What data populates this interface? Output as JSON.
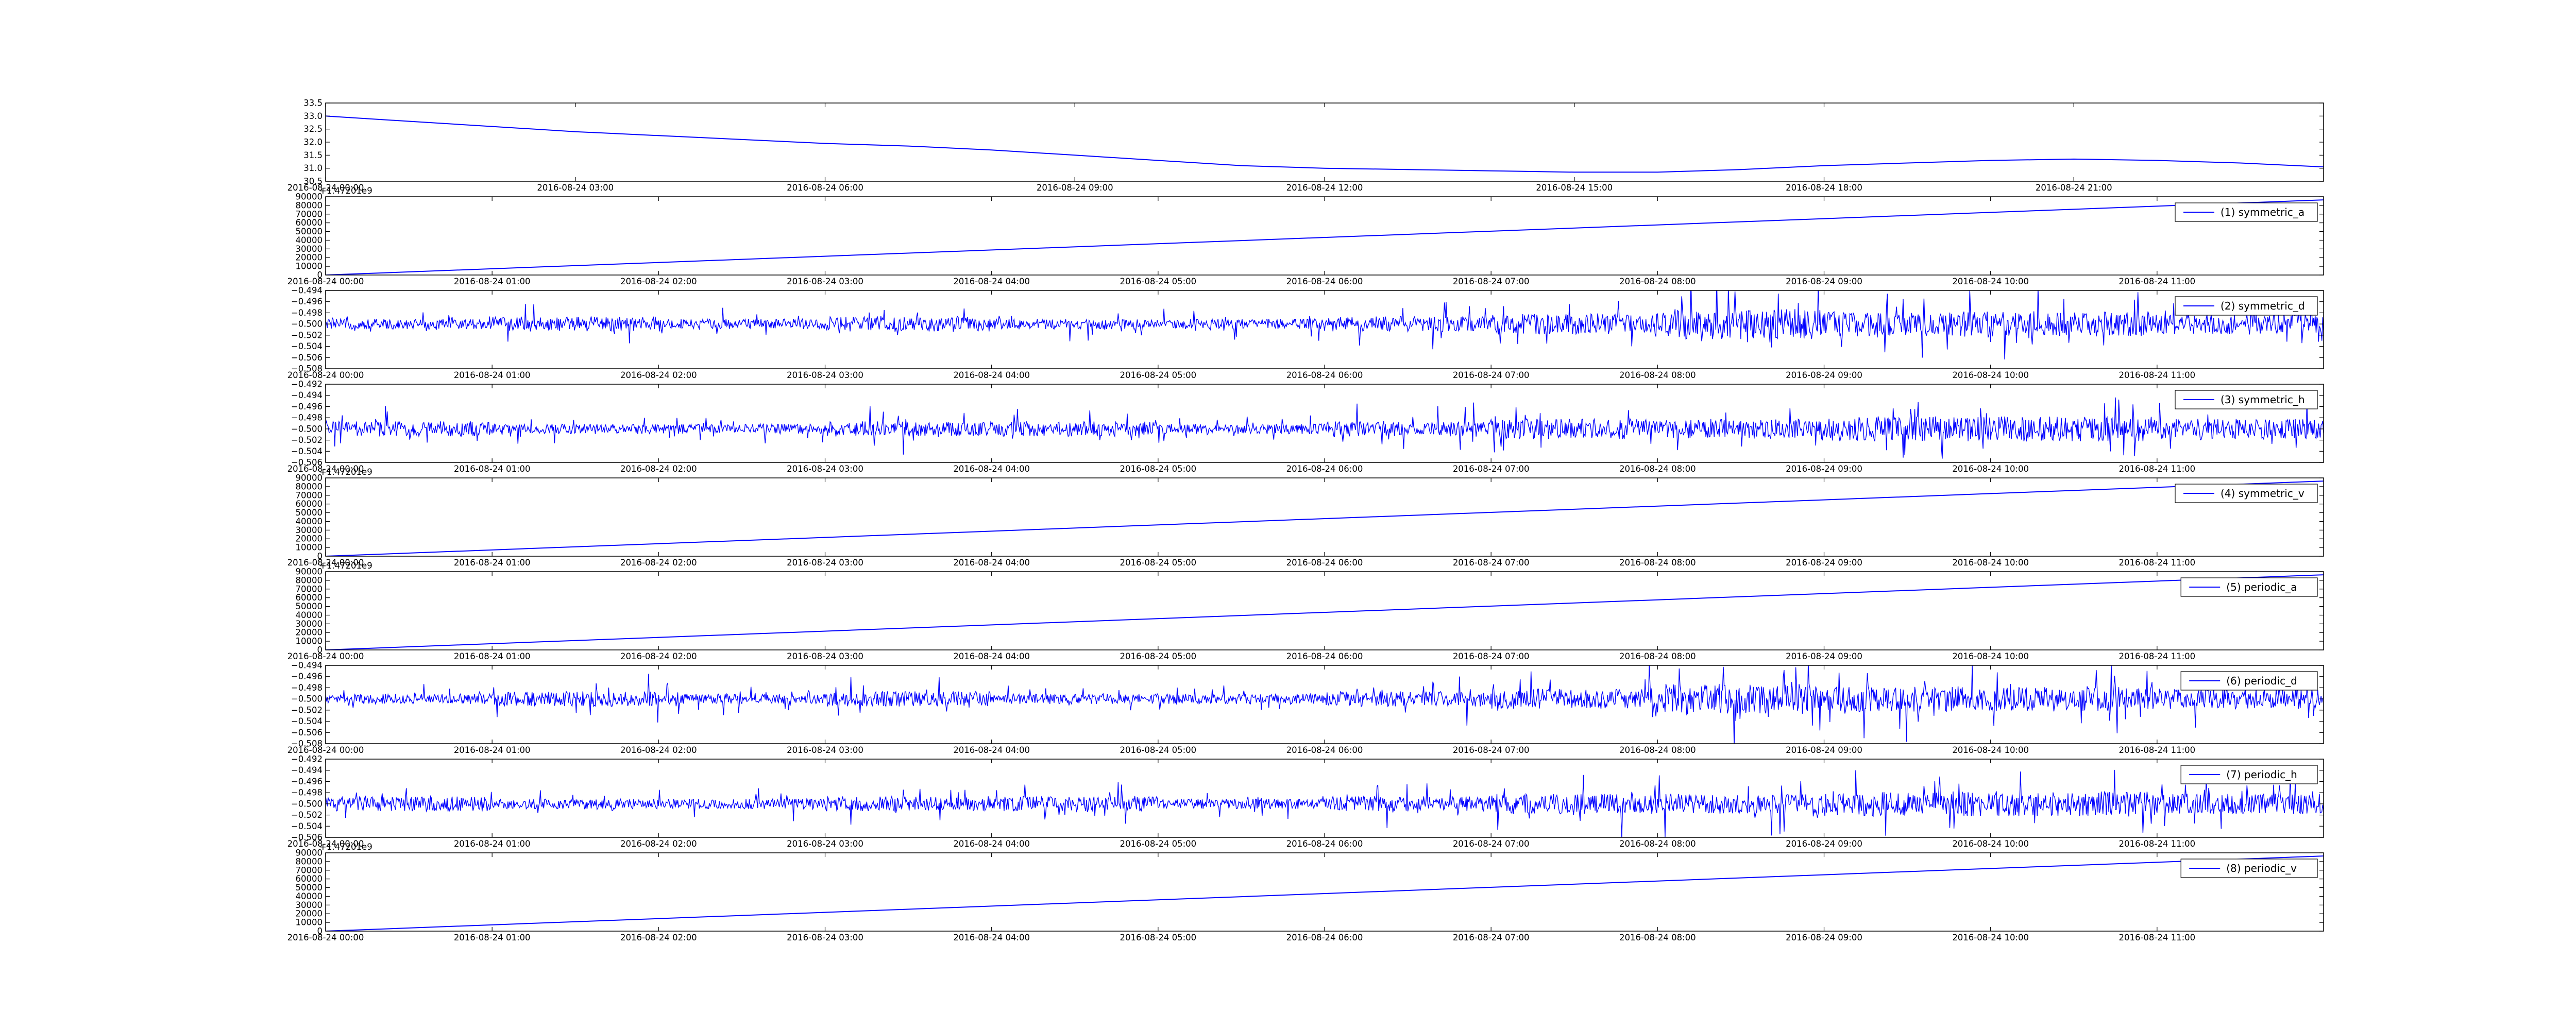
{
  "chart_data": [
    {
      "type": "line",
      "offset_label": "",
      "series": [
        {
          "points": [
            [
              "2016-08-24 00:00",
              33.0
            ],
            [
              "2016-08-24 01:00",
              32.8
            ],
            [
              "2016-08-24 02:00",
              32.6
            ],
            [
              "2016-08-24 03:00",
              32.4
            ],
            [
              "2016-08-24 04:00",
              32.25
            ],
            [
              "2016-08-24 05:00",
              32.1
            ],
            [
              "2016-08-24 06:00",
              31.95
            ],
            [
              "2016-08-24 07:00",
              31.85
            ],
            [
              "2016-08-24 08:00",
              31.7
            ],
            [
              "2016-08-24 09:00",
              31.5
            ],
            [
              "2016-08-24 10:00",
              31.3
            ],
            [
              "2016-08-24 11:00",
              31.1
            ],
            [
              "2016-08-24 12:00",
              31.0
            ],
            [
              "2016-08-24 13:00",
              30.95
            ],
            [
              "2016-08-24 14:00",
              30.9
            ],
            [
              "2016-08-24 15:00",
              30.85
            ],
            [
              "2016-08-24 16:00",
              30.85
            ],
            [
              "2016-08-24 17:00",
              30.95
            ],
            [
              "2016-08-24 18:00",
              31.1
            ],
            [
              "2016-08-24 19:00",
              31.2
            ],
            [
              "2016-08-24 20:00",
              31.3
            ],
            [
              "2016-08-24 21:00",
              31.35
            ],
            [
              "2016-08-24 22:00",
              31.3
            ],
            [
              "2016-08-24 23:00",
              31.2
            ],
            [
              "2016-08-25 00:00",
              31.05
            ]
          ]
        }
      ],
      "x_ticks": [
        "2016-08-24 00:00",
        "2016-08-24 03:00",
        "2016-08-24 06:00",
        "2016-08-24 09:00",
        "2016-08-24 12:00",
        "2016-08-24 15:00",
        "2016-08-24 18:00",
        "2016-08-24 21:00"
      ],
      "xlim": [
        "2016-08-24 00:00",
        "2016-08-25 00:00"
      ],
      "ylim": [
        30.5,
        33.5
      ],
      "y_ticks": [
        "30.5",
        "31.0",
        "31.5",
        "32.0",
        "32.5",
        "33.0",
        "33.5"
      ],
      "grid": false
    },
    {
      "type": "line",
      "offset_label": "+1.47201e9",
      "legend": "(1) symmetric_a",
      "legend_position": "right",
      "pattern": "ramp",
      "series": [
        {
          "name": "(1) symmetric_a",
          "x": [
            "2016-08-24 00:00",
            "2016-08-24 12:00"
          ],
          "y": [
            0,
            86400
          ]
        }
      ],
      "x_ticks": [
        "2016-08-24 00:00",
        "2016-08-24 01:00",
        "2016-08-24 02:00",
        "2016-08-24 03:00",
        "2016-08-24 04:00",
        "2016-08-24 05:00",
        "2016-08-24 06:00",
        "2016-08-24 07:00",
        "2016-08-24 08:00",
        "2016-08-24 09:00",
        "2016-08-24 10:00",
        "2016-08-24 11:00"
      ],
      "xlim": [
        "2016-08-24 00:00",
        "2016-08-24 12:00"
      ],
      "ylim": [
        0,
        90000
      ],
      "y_ticks": [
        "0",
        "10000",
        "20000",
        "30000",
        "40000",
        "50000",
        "60000",
        "70000",
        "80000",
        "90000"
      ],
      "grid": false
    },
    {
      "type": "line",
      "offset_label": "",
      "legend": "(2) symmetric_d",
      "legend_position": "right",
      "pattern": "noise",
      "series": [
        {
          "name": "(2) symmetric_d",
          "baseline": -0.5,
          "amplitude_profile": [
            0.002,
            0.003,
            0.002,
            0.003,
            0.002,
            0.002,
            0.003,
            0.004,
            0.006,
            0.005,
            0.005,
            0.004
          ]
        }
      ],
      "x_ticks": [
        "2016-08-24 00:00",
        "2016-08-24 01:00",
        "2016-08-24 02:00",
        "2016-08-24 03:00",
        "2016-08-24 04:00",
        "2016-08-24 05:00",
        "2016-08-24 06:00",
        "2016-08-24 07:00",
        "2016-08-24 08:00",
        "2016-08-24 09:00",
        "2016-08-24 10:00",
        "2016-08-24 11:00"
      ],
      "xlim": [
        "2016-08-24 00:00",
        "2016-08-24 12:00"
      ],
      "ylim": [
        -0.508,
        -0.494
      ],
      "y_ticks": [
        "−0.508",
        "−0.506",
        "−0.504",
        "−0.502",
        "−0.500",
        "−0.498",
        "−0.496",
        "−0.494"
      ],
      "grid": false
    },
    {
      "type": "line",
      "offset_label": "",
      "legend": "(3) symmetric_h",
      "legend_position": "right",
      "pattern": "noise",
      "series": [
        {
          "name": "(3) symmetric_h",
          "baseline": -0.5,
          "amplitude_profile": [
            0.003,
            0.002,
            0.002,
            0.003,
            0.003,
            0.002,
            0.003,
            0.004,
            0.004,
            0.005,
            0.005,
            0.004
          ]
        }
      ],
      "x_ticks": [
        "2016-08-24 00:00",
        "2016-08-24 01:00",
        "2016-08-24 02:00",
        "2016-08-24 03:00",
        "2016-08-24 04:00",
        "2016-08-24 05:00",
        "2016-08-24 06:00",
        "2016-08-24 07:00",
        "2016-08-24 08:00",
        "2016-08-24 09:00",
        "2016-08-24 10:00",
        "2016-08-24 11:00"
      ],
      "xlim": [
        "2016-08-24 00:00",
        "2016-08-24 12:00"
      ],
      "ylim": [
        -0.506,
        -0.492
      ],
      "y_ticks": [
        "−0.506",
        "−0.504",
        "−0.502",
        "−0.500",
        "−0.498",
        "−0.496",
        "−0.494",
        "−0.492"
      ],
      "grid": false
    },
    {
      "type": "line",
      "offset_label": "+1.47201e9",
      "legend": "(4) symmetric_v",
      "legend_position": "right",
      "pattern": "ramp",
      "series": [
        {
          "name": "(4) symmetric_v",
          "x": [
            "2016-08-24 00:00",
            "2016-08-24 12:00"
          ],
          "y": [
            0,
            86400
          ]
        }
      ],
      "x_ticks": [
        "2016-08-24 00:00",
        "2016-08-24 01:00",
        "2016-08-24 02:00",
        "2016-08-24 03:00",
        "2016-08-24 04:00",
        "2016-08-24 05:00",
        "2016-08-24 06:00",
        "2016-08-24 07:00",
        "2016-08-24 08:00",
        "2016-08-24 09:00",
        "2016-08-24 10:00",
        "2016-08-24 11:00"
      ],
      "xlim": [
        "2016-08-24 00:00",
        "2016-08-24 12:00"
      ],
      "ylim": [
        0,
        90000
      ],
      "y_ticks": [
        "0",
        "10000",
        "20000",
        "30000",
        "40000",
        "50000",
        "60000",
        "70000",
        "80000",
        "90000"
      ],
      "grid": false
    },
    {
      "type": "line",
      "offset_label": "+1.47201e9",
      "legend": "(5) periodic_a",
      "legend_position": "right",
      "pattern": "ramp",
      "series": [
        {
          "name": "(5) periodic_a",
          "x": [
            "2016-08-24 00:00",
            "2016-08-24 12:00"
          ],
          "y": [
            0,
            86400
          ]
        }
      ],
      "x_ticks": [
        "2016-08-24 00:00",
        "2016-08-24 01:00",
        "2016-08-24 02:00",
        "2016-08-24 03:00",
        "2016-08-24 04:00",
        "2016-08-24 05:00",
        "2016-08-24 06:00",
        "2016-08-24 07:00",
        "2016-08-24 08:00",
        "2016-08-24 09:00",
        "2016-08-24 10:00",
        "2016-08-24 11:00"
      ],
      "xlim": [
        "2016-08-24 00:00",
        "2016-08-24 12:00"
      ],
      "ylim": [
        0,
        90000
      ],
      "y_ticks": [
        "0",
        "10000",
        "20000",
        "30000",
        "40000",
        "50000",
        "60000",
        "70000",
        "80000",
        "90000"
      ],
      "grid": false
    },
    {
      "type": "line",
      "offset_label": "",
      "legend": "(6) periodic_d",
      "legend_position": "right",
      "pattern": "noise",
      "series": [
        {
          "name": "(6) periodic_d",
          "baseline": -0.5,
          "amplitude_profile": [
            0.002,
            0.003,
            0.002,
            0.003,
            0.002,
            0.002,
            0.003,
            0.004,
            0.006,
            0.005,
            0.005,
            0.004
          ]
        }
      ],
      "x_ticks": [
        "2016-08-24 00:00",
        "2016-08-24 01:00",
        "2016-08-24 02:00",
        "2016-08-24 03:00",
        "2016-08-24 04:00",
        "2016-08-24 05:00",
        "2016-08-24 06:00",
        "2016-08-24 07:00",
        "2016-08-24 08:00",
        "2016-08-24 09:00",
        "2016-08-24 10:00",
        "2016-08-24 11:00"
      ],
      "xlim": [
        "2016-08-24 00:00",
        "2016-08-24 12:00"
      ],
      "ylim": [
        -0.508,
        -0.494
      ],
      "y_ticks": [
        "−0.508",
        "−0.506",
        "−0.504",
        "−0.502",
        "−0.500",
        "−0.498",
        "−0.496",
        "−0.494"
      ],
      "grid": false
    },
    {
      "type": "line",
      "offset_label": "",
      "legend": "(7) periodic_h",
      "legend_position": "right",
      "pattern": "noise",
      "series": [
        {
          "name": "(7) periodic_h",
          "baseline": -0.5,
          "amplitude_profile": [
            0.003,
            0.002,
            0.002,
            0.003,
            0.003,
            0.002,
            0.003,
            0.004,
            0.004,
            0.005,
            0.005,
            0.004
          ]
        }
      ],
      "x_ticks": [
        "2016-08-24 00:00",
        "2016-08-24 01:00",
        "2016-08-24 02:00",
        "2016-08-24 03:00",
        "2016-08-24 04:00",
        "2016-08-24 05:00",
        "2016-08-24 06:00",
        "2016-08-24 07:00",
        "2016-08-24 08:00",
        "2016-08-24 09:00",
        "2016-08-24 10:00",
        "2016-08-24 11:00"
      ],
      "xlim": [
        "2016-08-24 00:00",
        "2016-08-24 12:00"
      ],
      "ylim": [
        -0.506,
        -0.492
      ],
      "y_ticks": [
        "−0.506",
        "−0.504",
        "−0.502",
        "−0.500",
        "−0.498",
        "−0.496",
        "−0.494",
        "−0.492"
      ],
      "grid": false
    },
    {
      "type": "line",
      "offset_label": "+1.47201e9",
      "legend": "(8) periodic_v",
      "legend_position": "right",
      "pattern": "ramp",
      "series": [
        {
          "name": "(8) periodic_v",
          "x": [
            "2016-08-24 00:00",
            "2016-08-24 12:00"
          ],
          "y": [
            0,
            86400
          ]
        }
      ],
      "x_ticks": [
        "2016-08-24 00:00",
        "2016-08-24 01:00",
        "2016-08-24 02:00",
        "2016-08-24 03:00",
        "2016-08-24 04:00",
        "2016-08-24 05:00",
        "2016-08-24 06:00",
        "2016-08-24 07:00",
        "2016-08-24 08:00",
        "2016-08-24 09:00",
        "2016-08-24 10:00",
        "2016-08-24 11:00"
      ],
      "xlim": [
        "2016-08-24 00:00",
        "2016-08-24 12:00"
      ],
      "ylim": [
        0,
        90000
      ],
      "y_ticks": [
        "0",
        "10000",
        "20000",
        "30000",
        "40000",
        "50000",
        "60000",
        "70000",
        "80000",
        "90000"
      ],
      "grid": false
    }
  ],
  "colors": {
    "line": "#0000ff",
    "axes": "#000000",
    "background": "#ffffff"
  }
}
